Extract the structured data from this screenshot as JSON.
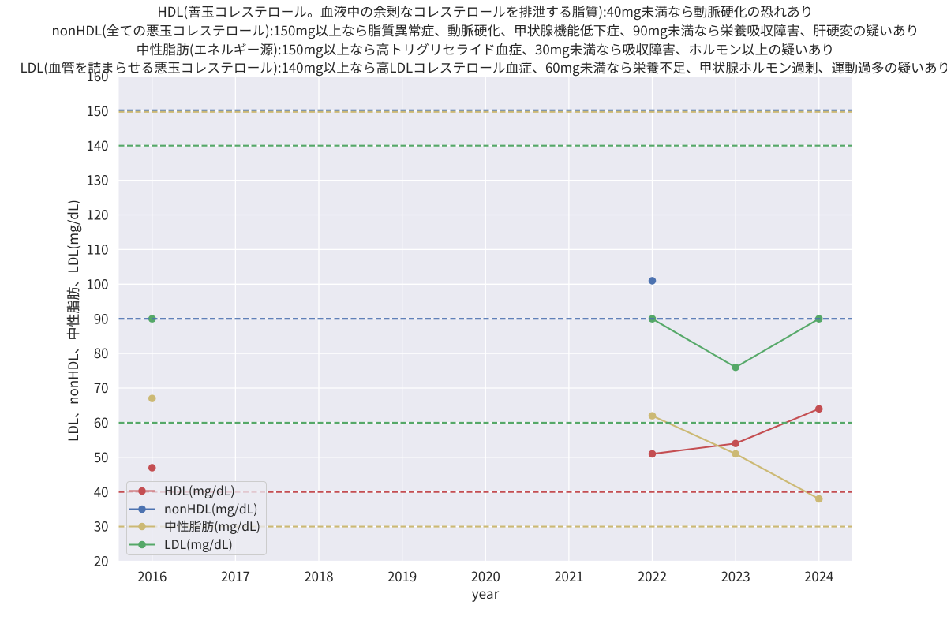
{
  "page": {
    "background": "#ffffff"
  },
  "chart_data": {
    "type": "line",
    "title_lines": [
      "HDL(善玉コレステロール。血液中の余剰なコレステロールを排泄する脂質):40mg未満なら動脈硬化の恐れあり",
      "nonHDL(全ての悪玉コレステロール):150mg以上なら脂質異常症、動脈硬化、甲状腺機能低下症、90mg未満なら栄養吸収障害、肝硬変の疑いあり",
      "中性脂肪(エネルギー源):150mg以上なら高トリグリセライド血症、30mg未満なら吸収障害、ホルモン以上の疑いあり",
      "LDL(血管を詰まらせる悪玉コレステロール):140mg以上なら高LDLコレステロール血症、60mg未満なら栄養不足、甲状腺ホルモン過剰、運動過多の疑いあり"
    ],
    "xlabel": "year",
    "ylabel": "LDL、nonHDL、中性脂肪、LDL(mg/dL)",
    "x": [
      2016,
      2017,
      2018,
      2019,
      2020,
      2021,
      2022,
      2023,
      2024
    ],
    "xticks": [
      "2016",
      "2017",
      "2018",
      "2019",
      "2020",
      "2021",
      "2022",
      "2023",
      "2024"
    ],
    "yticks": [
      20,
      30,
      40,
      50,
      60,
      70,
      80,
      90,
      100,
      110,
      120,
      130,
      140,
      150,
      160
    ],
    "xlim": [
      2015.6,
      2024.4
    ],
    "ylim": [
      20,
      160
    ],
    "grid": true,
    "legend_position": "lower left",
    "series": [
      {
        "name": "HDL(mg/dL)",
        "color": "#c44e52",
        "values": [
          47,
          null,
          null,
          null,
          null,
          null,
          51,
          54,
          64
        ]
      },
      {
        "name": "nonHDL(mg/dL)",
        "color": "#4c72b0",
        "values": [
          null,
          null,
          null,
          null,
          null,
          null,
          101,
          null,
          null
        ]
      },
      {
        "name": "中性脂肪(mg/dL)",
        "color": "#ccb974",
        "values": [
          67,
          null,
          null,
          null,
          null,
          null,
          62,
          51,
          38
        ]
      },
      {
        "name": "LDL(mg/dL)",
        "color": "#55a868",
        "values": [
          90,
          null,
          null,
          null,
          null,
          null,
          90,
          76,
          90
        ]
      }
    ],
    "threshold_lines": [
      {
        "value": 40,
        "color": "#c44e52",
        "style": "dashed"
      },
      {
        "value": 150,
        "color": "#4c72b0",
        "style": "dashed"
      },
      {
        "value": 90,
        "color": "#4c72b0",
        "style": "dashed"
      },
      {
        "value": 150,
        "color": "#ccb974",
        "style": "dashed"
      },
      {
        "value": 30,
        "color": "#ccb974",
        "style": "dashed"
      },
      {
        "value": 140,
        "color": "#55a868",
        "style": "dashed"
      },
      {
        "value": 60,
        "color": "#55a868",
        "style": "dashed"
      }
    ],
    "style": {
      "plot_bg": "#eaeaf2",
      "grid_color": "#ffffff",
      "text_color": "#262626",
      "legend_border": "#cccccc"
    }
  }
}
